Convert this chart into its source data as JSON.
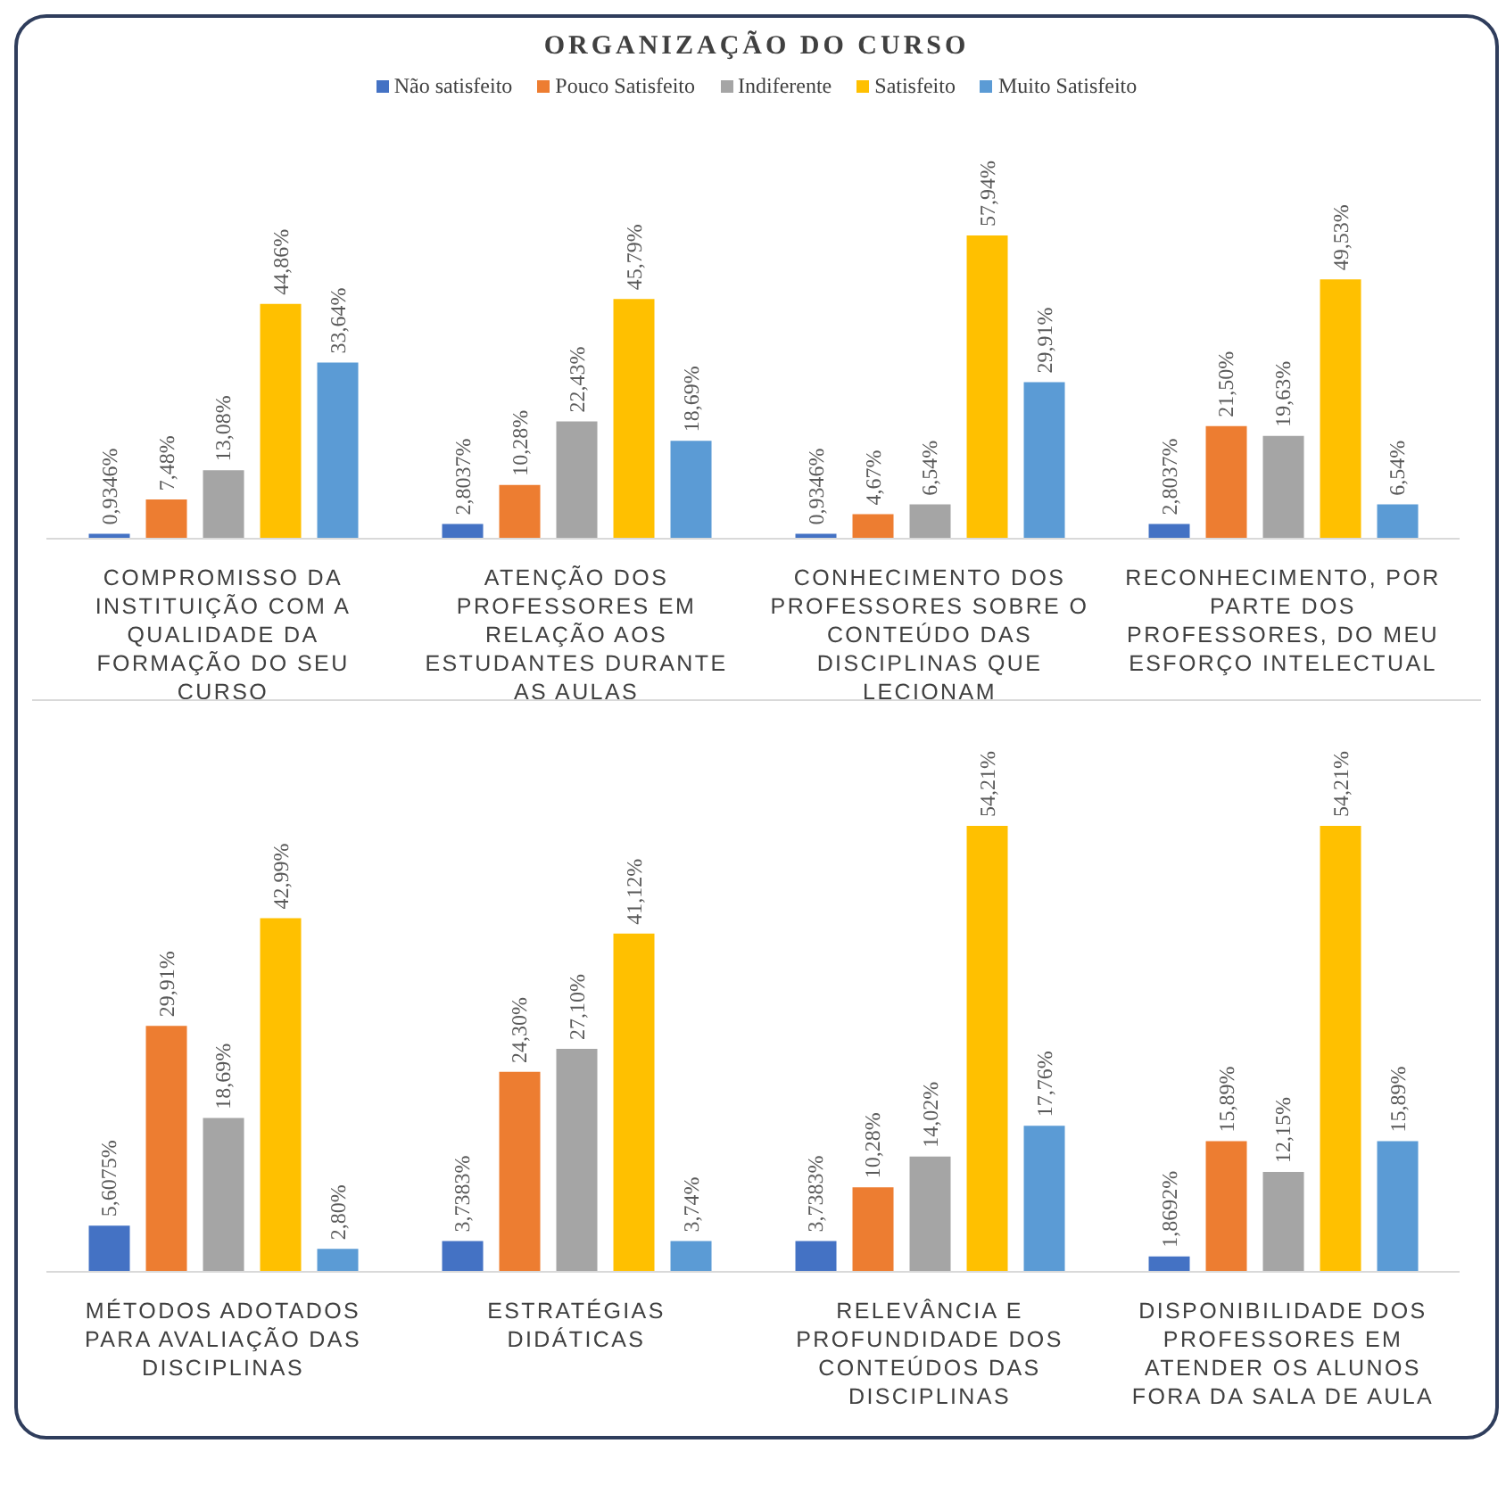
{
  "chart_data": [
    {
      "type": "bar",
      "title": "ORGANIZAÇÃO DO CURSO",
      "legend": "top",
      "categories": [
        "COMPROMISSO DA INSTITUIÇÃO COM A QUALIDADE DA FORMAÇÃO DO SEU CURSO",
        "ATENÇÃO DOS PROFESSORES EM RELAÇÃO AOS ESTUDANTES DURANTE AS AULAS",
        "CONHECIMENTO DOS PROFESSORES SOBRE O CONTEÚDO DAS DISCIPLINAS QUE LECIONAM",
        "RECONHECIMENTO, POR PARTE DOS PROFESSORES, DO MEU ESFORÇO INTELECTUAL"
      ],
      "series": [
        {
          "name": "Não satisfeito",
          "color": "#4472c4",
          "values": [
            0.9346,
            2.8037,
            0.9346,
            2.8037
          ],
          "value_labels": [
            "0,9346%",
            "2,8037%",
            "0,9346%",
            "2,8037%"
          ]
        },
        {
          "name": "Pouco Satisfeito",
          "color": "#ed7d31",
          "values": [
            7.48,
            10.28,
            4.67,
            21.5
          ],
          "value_labels": [
            "7,48%",
            "10,28%",
            "4,67%",
            "21,50%"
          ]
        },
        {
          "name": "Indiferente",
          "color": "#a5a5a5",
          "values": [
            13.08,
            22.43,
            6.54,
            19.63
          ],
          "value_labels": [
            "13,08%",
            "22,43%",
            "6,54%",
            "19,63%"
          ]
        },
        {
          "name": "Satisfeito",
          "color": "#ffc000",
          "values": [
            44.86,
            45.79,
            57.94,
            49.53
          ],
          "value_labels": [
            "44,86%",
            "45,79%",
            "57,94%",
            "49,53%"
          ]
        },
        {
          "name": "Muito Satisfeito",
          "color": "#5b9bd5",
          "values": [
            33.64,
            18.69,
            29.91,
            6.54
          ],
          "value_labels": [
            "33,64%",
            "18,69%",
            "29,91%",
            "6,54%"
          ]
        }
      ]
    },
    {
      "type": "bar",
      "categories": [
        "MÉTODOS ADOTADOS PARA AVALIAÇÃO DAS DISCIPLINAS",
        "ESTRATÉGIAS DIDÁTICAS",
        "RELEVÂNCIA E PROFUNDIDADE DOS CONTEÚDOS DAS DISCIPLINAS",
        "DISPONIBILIDADE DOS PROFESSORES EM ATENDER OS ALUNOS FORA DA SALA DE AULA"
      ],
      "series": [
        {
          "color": "#4472c4",
          "values": [
            5.6075,
            3.7383,
            3.7383,
            1.8692
          ],
          "value_labels": [
            "5,6075%",
            "3,7383%",
            "3,7383%",
            "1,8692%"
          ]
        },
        {
          "color": "#ed7d31",
          "values": [
            29.91,
            24.3,
            10.28,
            15.89
          ],
          "value_labels": [
            "29,91%",
            "24,30%",
            "10,28%",
            "15,89%"
          ]
        },
        {
          "color": "#a5a5a5",
          "values": [
            18.69,
            27.1,
            14.02,
            12.15
          ],
          "value_labels": [
            "18,69%",
            "27,10%",
            "14,02%",
            "12,15%"
          ]
        },
        {
          "color": "#ffc000",
          "values": [
            42.99,
            41.12,
            54.21,
            54.21
          ],
          "value_labels": [
            "42,99%",
            "41,12%",
            "54,21%",
            "54,21%"
          ]
        },
        {
          "color": "#5b9bd5",
          "values": [
            2.8,
            3.74,
            17.76,
            15.89
          ],
          "value_labels": [
            "2,80%",
            "3,74%",
            "17,76%",
            "15,89%"
          ]
        }
      ]
    }
  ]
}
